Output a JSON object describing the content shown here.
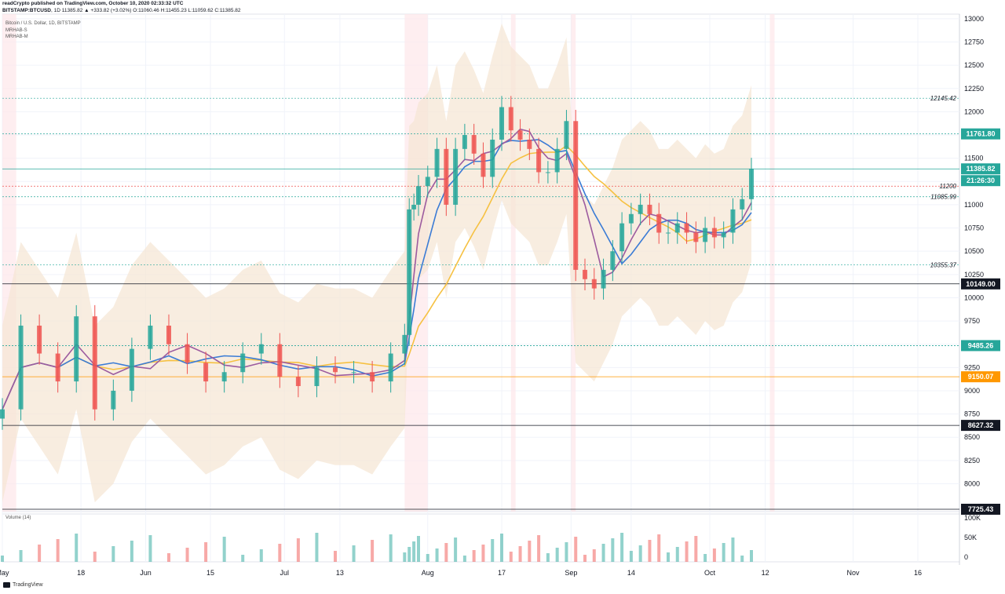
{
  "header": {
    "publisher": "readCrypto published on TradingView.com, October 10, 2020 02:33:32 UTC",
    "symbol": "BITSTAMP:BTCUSD",
    "interval": "1D",
    "ohlc": "11385.82 ▲ +333.82 (+3.02%) O:11060.46 H:11455.23 L:11059.62 C:11385.82",
    "instrument": "Bitcoin / U.S. Dollar, 1D, BITSTAMP",
    "indicator1": "MRHAB-S",
    "indicator2": "MRHAB-M",
    "volume_label": "Volume (14)",
    "brand": "TradingView"
  },
  "colors": {
    "up": "#26a69a",
    "down": "#ef5350",
    "band": "#f5e6d3",
    "ma_orange": "#f6c142",
    "ma_blue": "#3a7bd5",
    "ma_purple": "#9c5b9f"
  },
  "chart_data": {
    "type": "candlestick",
    "title": "Bitcoin / U.S. Dollar, 1D, BITSTAMP",
    "ylim": [
      7700,
      13050
    ],
    "y_ticks": [
      8000,
      8250,
      8500,
      8750,
      9000,
      9250,
      9500,
      9750,
      10000,
      10250,
      10500,
      10750,
      11000,
      11250,
      11500,
      11750,
      12000,
      12250,
      12500,
      12750,
      13000
    ],
    "x_labels": [
      "May",
      "18",
      "Jun",
      "15",
      "Jul",
      "13",
      "Aug",
      "17",
      "Sep",
      "14",
      "Oct",
      "12",
      "Nov",
      "16"
    ],
    "x_label_days": [
      0,
      17,
      31,
      45,
      61,
      73,
      92,
      108,
      123,
      136,
      153,
      165,
      184,
      198
    ],
    "x_range_days": [
      0,
      207
    ],
    "price_labels": [
      {
        "value": 11761.8,
        "label": "11761.80",
        "style": "teal"
      },
      {
        "value": 11385.82,
        "label": "11385.82",
        "style": "green"
      },
      {
        "value": 10149.0,
        "label": "10149.00",
        "style": "black"
      },
      {
        "value": 9485.26,
        "label": "9485.26",
        "style": "teal"
      },
      {
        "value": 9150.07,
        "label": "9150.07",
        "style": "orange"
      },
      {
        "value": 8627.32,
        "label": "8627.32",
        "style": "black"
      },
      {
        "value": 7725.43,
        "label": "7725.43",
        "style": "black"
      }
    ],
    "countdown": "21:26:30",
    "level_notes": [
      {
        "value": 12145.42,
        "label": "12145.42"
      },
      {
        "value": 11200,
        "label": "11200"
      },
      {
        "value": 11085.99,
        "label": "11085.99"
      },
      {
        "value": 10355.37,
        "label": "10355.37"
      }
    ],
    "volume_ticks": [
      "100K",
      "50K",
      "0"
    ],
    "series": [
      {
        "name": "close",
        "x_days": [
          0,
          4,
          8,
          12,
          16,
          20,
          24,
          28,
          32,
          36,
          40,
          44,
          48,
          52,
          56,
          60,
          64,
          68,
          72,
          76,
          80,
          84,
          87,
          88,
          89,
          90,
          92,
          94,
          96,
          98,
          100,
          102,
          104,
          106,
          108,
          110,
          112,
          114,
          116,
          118,
          120,
          122,
          124,
          126,
          128,
          130,
          132,
          134,
          136,
          138,
          140,
          142,
          144,
          146,
          148,
          150,
          152,
          154,
          156,
          158,
          160,
          162
        ],
        "values": [
          8800,
          9700,
          9400,
          9100,
          9800,
          8800,
          9000,
          9450,
          9700,
          9500,
          9300,
          9100,
          9200,
          9400,
          9500,
          9150,
          9050,
          9250,
          9200,
          9200,
          9100,
          9400,
          9600,
          10950,
          11000,
          11200,
          11300,
          11600,
          11000,
          11600,
          11750,
          11550,
          11300,
          11700,
          12050,
          11800,
          11700,
          11600,
          11350,
          11350,
          11600,
          11900,
          10300,
          10200,
          10100,
          10300,
          10500,
          10800,
          10900,
          11000,
          10900,
          10700,
          10700,
          10800,
          10700,
          10600,
          10750,
          10650,
          10700,
          10950,
          11060,
          11385
        ]
      }
    ]
  }
}
